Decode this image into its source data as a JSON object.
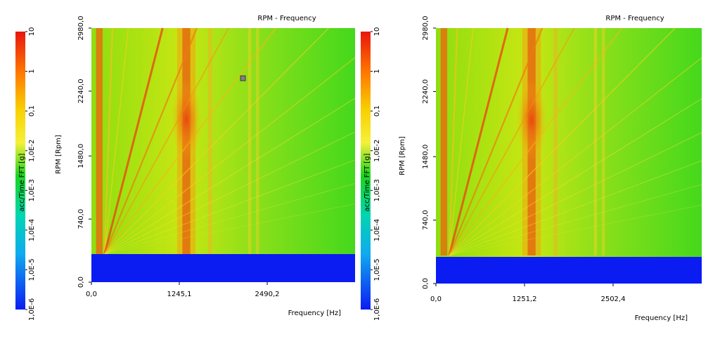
{
  "charts": [
    {
      "id": "left",
      "title": "RPM - Frequency",
      "colorbar_label": "acc/Time FFT [g]",
      "colorbar_ticks": [
        "10",
        "1",
        "0,1",
        "1,0E-2",
        "1,0E-3",
        "1,0E-4",
        "1,0E-5",
        "1,0E-6"
      ],
      "ylabel": "RPM [Rpm]",
      "yticks": [
        "0,0",
        "740,0",
        "1480,0",
        "2240,0",
        "2980,0"
      ],
      "xlabel": "Frequency [Hz]",
      "xticks": [
        "0,0",
        "1245,1",
        "2490,2"
      ]
    },
    {
      "id": "right",
      "title": "RPM - Frequency",
      "colorbar_label": "acc/Time FFT [g]",
      "colorbar_ticks": [
        "10",
        "1",
        "0,1",
        "1,0E-2",
        "1,0E-3",
        "1,0E-4",
        "1,0E-5",
        "1,0E-6"
      ],
      "ylabel": "RPM [Rpm]",
      "yticks": [
        "0,0",
        "740,0",
        "1480,0",
        "2240,0",
        "2980,0"
      ],
      "xlabel": "Frequency [Hz]",
      "xticks": [
        "0,0",
        "1251,2",
        "2502,4"
      ]
    }
  ],
  "chart_data": [
    {
      "type": "heatmap",
      "title": "RPM - Frequency",
      "xlabel": "Frequency [Hz]",
      "ylabel": "RPM [Rpm]",
      "xlim": [
        0,
        3735
      ],
      "ylim": [
        0,
        2980
      ],
      "xticks": [
        0,
        1245.1,
        2490.2
      ],
      "yticks": [
        0,
        740,
        1480,
        2240,
        2980
      ],
      "colorscale": "log",
      "zlim": [
        1e-06,
        10
      ],
      "zlabel": "acc/Time FFT [g]",
      "no_data_below_rpm": 300,
      "grid": false
    },
    {
      "type": "heatmap",
      "title": "RPM - Frequency",
      "xlabel": "Frequency [Hz]",
      "ylabel": "RPM [Rpm]",
      "xlim": [
        0,
        3754
      ],
      "ylim": [
        0,
        2980
      ],
      "xticks": [
        0,
        1251.2,
        2502.4
      ],
      "yticks": [
        0,
        740,
        1480,
        2240,
        2980
      ],
      "colorscale": "log",
      "zlim": [
        1e-06,
        10
      ],
      "zlabel": "acc/Time FFT [g]",
      "no_data_below_rpm": 300,
      "grid": false
    }
  ],
  "colors": {
    "background": "#3fd81a",
    "no_data": "#0b1cf2",
    "colorbar_stops": [
      "#e8150d",
      "#ff7a00",
      "#f8d000",
      "#f5f03a",
      "#19d61e",
      "#00d6b0",
      "#10aaf0",
      "#0b1cf2"
    ]
  }
}
